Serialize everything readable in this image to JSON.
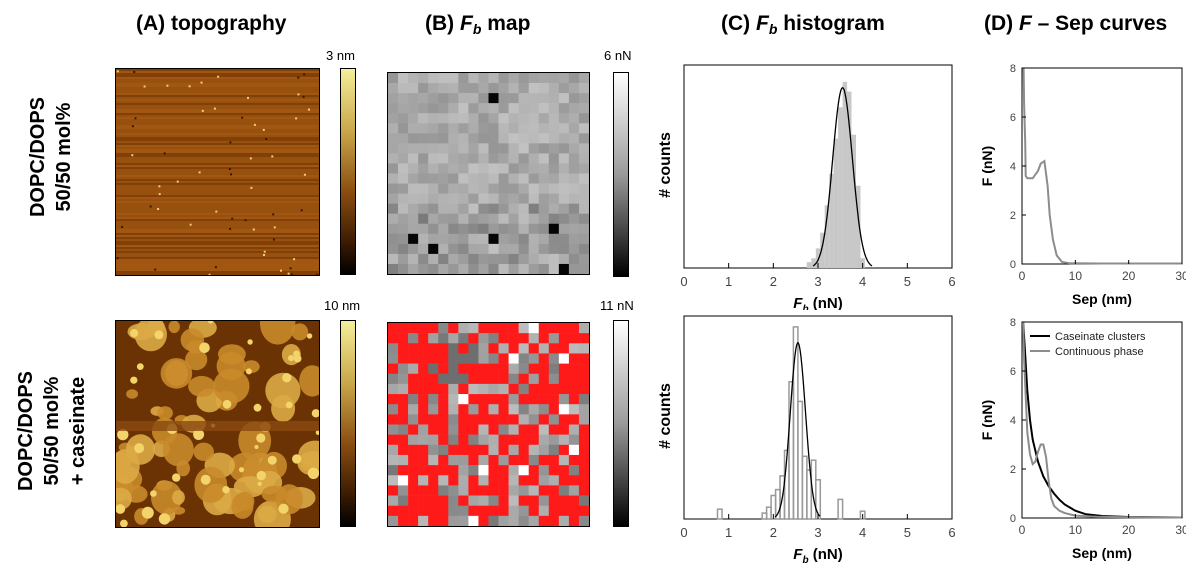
{
  "columns": {
    "a": {
      "prefix": "(A) topography"
    },
    "b": {
      "prefix": "(B) ",
      "var": "F",
      "sub": "b",
      "suffix": " map"
    },
    "c": {
      "prefix": "(C) ",
      "var": "F",
      "sub": "b",
      "suffix": " histogram"
    },
    "d": {
      "prefix": "(D) ",
      "var": "F",
      "suffix": " – Sep curves"
    }
  },
  "rows": {
    "top": {
      "line1": "DOPC/DOPS",
      "line2": "50/50 mol%"
    },
    "bottom": {
      "line1": "DOPC/DOPS",
      "line2": "50/50 mol%",
      "line3": "+ caseinate"
    }
  },
  "colorbars": {
    "topo_top": "3 nm",
    "topo_bottom": "10 nm",
    "map_top": "6 nN",
    "map_bottom": "11 nN"
  },
  "colors": {
    "topo_dark": "#2a1200",
    "topo_mid": "#a0560e",
    "topo_light": "#f2e17a",
    "map_red": "#ff1a1a",
    "hist_fill": "#c8c8c8",
    "curve_black": "#000000",
    "curve_gray": "#8c8c8c"
  },
  "chart_data": [
    {
      "type": "bar",
      "panel": "C-top",
      "xlabel_var": "F",
      "xlabel_sub": "b",
      "xlabel_unit": " (nN)",
      "ylabel": "# counts",
      "xlim": [
        0,
        6
      ],
      "xticks": [
        "0",
        "1",
        "2",
        "3",
        "4",
        "5",
        "6"
      ],
      "bins": [
        2.8,
        2.9,
        3.0,
        3.1,
        3.2,
        3.3,
        3.4,
        3.5,
        3.6,
        3.7,
        3.8,
        3.9,
        4.0
      ],
      "counts": [
        0.03,
        0.05,
        0.1,
        0.18,
        0.32,
        0.48,
        0.66,
        0.82,
        0.95,
        0.9,
        0.68,
        0.42,
        0.05
      ],
      "fit": {
        "mean": 3.55,
        "sd": 0.22,
        "peak": 0.92
      }
    },
    {
      "type": "bar",
      "panel": "C-bottom",
      "xlabel_var": "F",
      "xlabel_sub": "b",
      "xlabel_unit": " (nN)",
      "ylabel": "# counts",
      "xlim": [
        0,
        6
      ],
      "xticks": [
        "0",
        "1",
        "2",
        "3",
        "4",
        "5",
        "6"
      ],
      "bins": [
        0.8,
        1.8,
        1.9,
        2.0,
        2.1,
        2.2,
        2.3,
        2.4,
        2.5,
        2.6,
        2.7,
        2.8,
        2.9,
        3.0,
        3.5,
        4.0
      ],
      "counts": [
        0.05,
        0.03,
        0.06,
        0.12,
        0.15,
        0.22,
        0.35,
        0.7,
        0.98,
        0.6,
        0.32,
        0.25,
        0.3,
        0.2,
        0.1,
        0.04
      ],
      "fit": {
        "mean": 2.55,
        "sd": 0.17,
        "peak": 0.9
      }
    },
    {
      "type": "line",
      "panel": "D-top",
      "xlabel": "Sep (nm)",
      "ylabel": "F (nN)",
      "xlim": [
        0,
        30
      ],
      "ylim": [
        0,
        8
      ],
      "xticks": [
        "0",
        "10",
        "20",
        "30"
      ],
      "yticks": [
        "0",
        "2",
        "4",
        "6",
        "8"
      ],
      "series": [
        {
          "x": [
            0.3,
            0.4,
            0.6,
            0.7,
            1.0,
            2.0,
            3.0,
            3.5,
            4.2,
            4.8,
            5.2,
            5.8,
            6.5,
            7.5,
            9,
            15,
            20,
            30
          ],
          "y": [
            8.0,
            6.5,
            5.0,
            3.6,
            3.5,
            3.5,
            3.8,
            4.1,
            4.2,
            3.2,
            2.0,
            1.0,
            0.35,
            0.08,
            0.03,
            0.02,
            0.02,
            0.02
          ]
        }
      ]
    },
    {
      "type": "line",
      "panel": "D-bottom",
      "xlabel": "Sep (nm)",
      "ylabel": "F (nN)",
      "xlim": [
        0,
        30
      ],
      "ylim": [
        0,
        8
      ],
      "xticks": [
        "0",
        "10",
        "20",
        "30"
      ],
      "yticks": [
        "0",
        "2",
        "4",
        "6",
        "8"
      ],
      "legend_position": "top-right",
      "series": [
        {
          "name": "Caseinate clusters",
          "x": [
            0.2,
            0.5,
            1.0,
            1.5,
            2.0,
            3.0,
            4.0,
            5.0,
            6.0,
            7.0,
            8.0,
            10,
            12,
            15,
            20,
            30
          ],
          "y": [
            8.0,
            7.0,
            5.2,
            4.0,
            3.2,
            2.3,
            1.7,
            1.3,
            1.0,
            0.75,
            0.55,
            0.3,
            0.15,
            0.08,
            0.04,
            0.02
          ]
        },
        {
          "name": "Continuous phase",
          "x": [
            0.2,
            0.4,
            0.7,
            1.0,
            1.5,
            2.0,
            2.5,
            3.0,
            3.5,
            4.0,
            4.5,
            5.0,
            5.5,
            6.0,
            7.0,
            8.0,
            10,
            14,
            20,
            30
          ],
          "y": [
            8.0,
            6.5,
            5.0,
            3.5,
            2.6,
            2.2,
            2.3,
            2.7,
            3.0,
            3.0,
            2.5,
            1.5,
            0.8,
            0.5,
            0.3,
            0.2,
            0.1,
            0.05,
            0.03,
            0.02
          ]
        }
      ]
    }
  ]
}
